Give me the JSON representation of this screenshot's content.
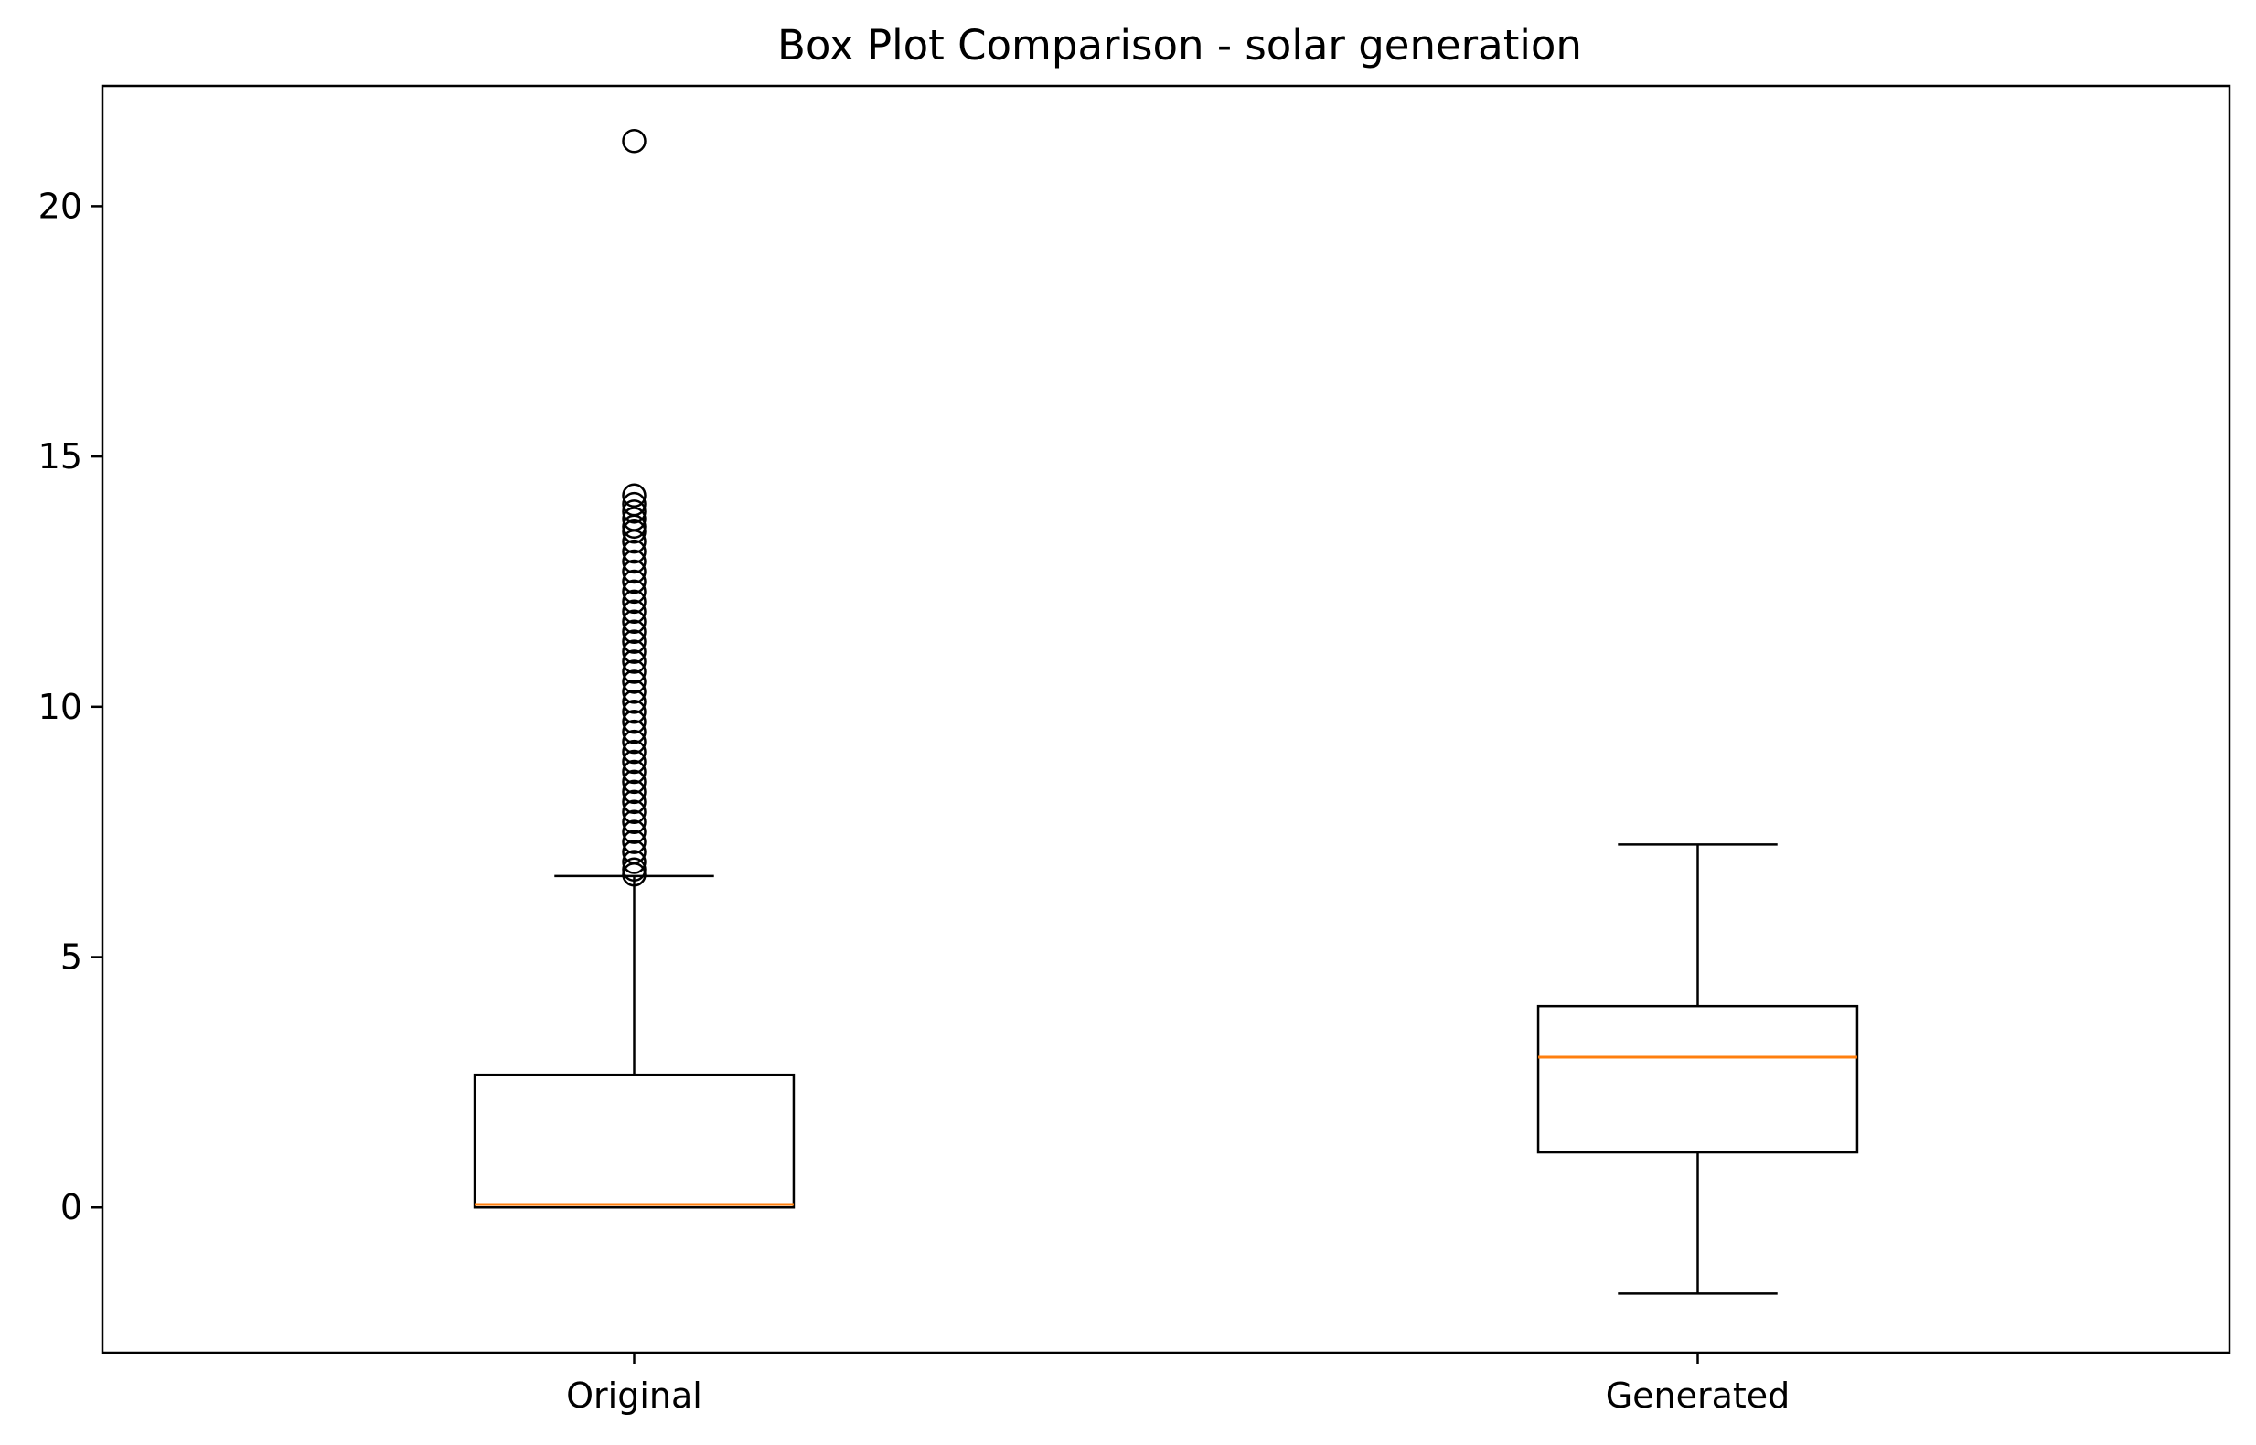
{
  "chart_data": {
    "type": "box",
    "title": "Box Plot Comparison - solar generation",
    "xlabel": "",
    "ylabel": "",
    "ylim": [
      -2.9,
      22.4
    ],
    "yticks": [
      0,
      5,
      10,
      15,
      20
    ],
    "grid": false,
    "colors": {
      "box": "#000000",
      "median": "#ff7f0e",
      "background": "#ffffff"
    },
    "categories": [
      "Original",
      "Generated"
    ],
    "boxes": [
      {
        "label": "Original",
        "whisker_low": 0.0,
        "q1": 0.0,
        "median": 0.06,
        "q3": 2.65,
        "whisker_high": 6.62,
        "outliers": [
          6.65,
          6.75,
          6.9,
          7.1,
          7.3,
          7.5,
          7.7,
          7.9,
          8.1,
          8.3,
          8.5,
          8.7,
          8.9,
          9.1,
          9.3,
          9.5,
          9.7,
          9.9,
          10.1,
          10.3,
          10.5,
          10.7,
          10.9,
          11.1,
          11.3,
          11.5,
          11.7,
          11.9,
          12.1,
          12.3,
          12.5,
          12.7,
          12.9,
          13.1,
          13.3,
          13.5,
          13.6,
          13.75,
          13.9,
          14.05,
          14.22,
          21.3
        ]
      },
      {
        "label": "Generated",
        "whisker_low": -1.72,
        "q1": 1.1,
        "median": 3.0,
        "q3": 4.02,
        "whisker_high": 7.25,
        "outliers": []
      }
    ]
  }
}
